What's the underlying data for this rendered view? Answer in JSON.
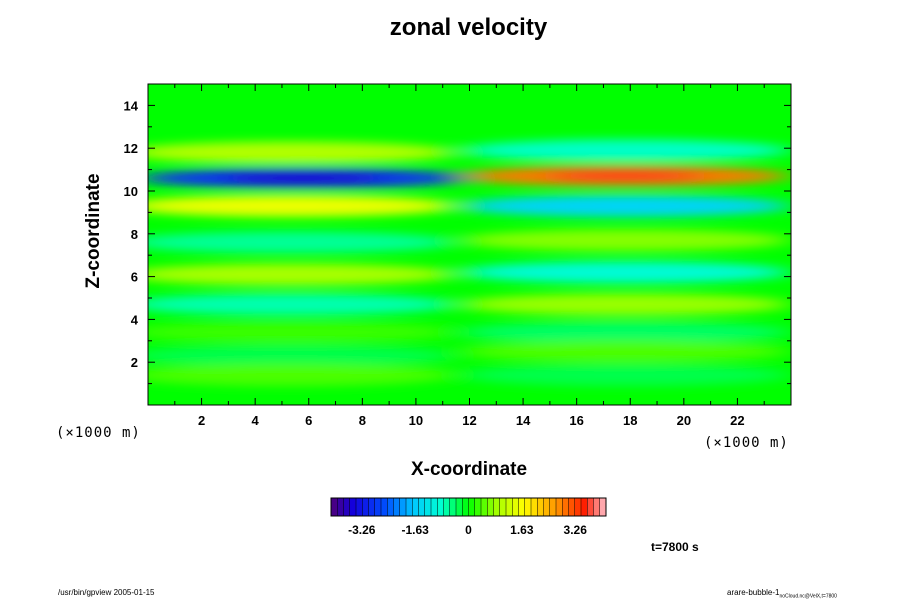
{
  "chart_data": {
    "type": "heatmap",
    "title": "zonal velocity",
    "xlabel": "X-coordinate",
    "ylabel": "Z-coordinate",
    "x_unit": "(×1000 m)",
    "y_unit": "(×1000 m)",
    "xlim": [
      0,
      24
    ],
    "ylim": [
      0,
      15
    ],
    "x_ticks": [
      2,
      4,
      6,
      8,
      10,
      12,
      14,
      16,
      18,
      20,
      22
    ],
    "y_ticks": [
      2,
      4,
      6,
      8,
      10,
      12,
      14
    ],
    "colorbar": {
      "range": [
        -4.2,
        4.2
      ],
      "ticks": [
        "-3.26",
        "-1.63",
        "0",
        "1.63",
        "3.26"
      ],
      "tick_values": [
        -3.26,
        -1.63,
        0,
        1.63,
        3.26
      ]
    },
    "bands": [
      {
        "x_center": 5.3,
        "z": 11.8,
        "value": 1.0
      },
      {
        "x_center": 5.8,
        "z": 10.6,
        "value": -2.9
      },
      {
        "x_center": 5.3,
        "z": 9.3,
        "value": 1.5
      },
      {
        "x_center": 5.3,
        "z": 7.6,
        "value": -0.6
      },
      {
        "x_center": 5.3,
        "z": 6.1,
        "value": 0.9
      },
      {
        "x_center": 5.3,
        "z": 4.7,
        "value": -0.7
      },
      {
        "x_center": 5.3,
        "z": 3.4,
        "value": 0.3
      },
      {
        "x_center": 5.3,
        "z": 2.3,
        "value": -0.3
      },
      {
        "x_center": 5.3,
        "z": 1.4,
        "value": 0.4
      },
      {
        "x_center": 17.8,
        "z": 11.9,
        "value": -0.8
      },
      {
        "x_center": 17.8,
        "z": 10.7,
        "value": 2.9
      },
      {
        "x_center": 17.8,
        "z": 9.3,
        "value": -1.5
      },
      {
        "x_center": 17.8,
        "z": 7.7,
        "value": 0.7
      },
      {
        "x_center": 17.8,
        "z": 6.2,
        "value": -0.9
      },
      {
        "x_center": 17.8,
        "z": 4.7,
        "value": 0.8
      },
      {
        "x_center": 17.8,
        "z": 3.4,
        "value": -0.4
      },
      {
        "x_center": 17.8,
        "z": 2.5,
        "value": 0.4
      },
      {
        "x_center": 17.8,
        "z": 1.4,
        "value": -0.3
      }
    ]
  },
  "time_label": "t=7800 s",
  "footer_left": "/usr/bin/gpview 2005-01-15",
  "footer_right_main": "arare-bubble-1",
  "footer_right_sub": "noCloud.nc@VelX,t=7800"
}
